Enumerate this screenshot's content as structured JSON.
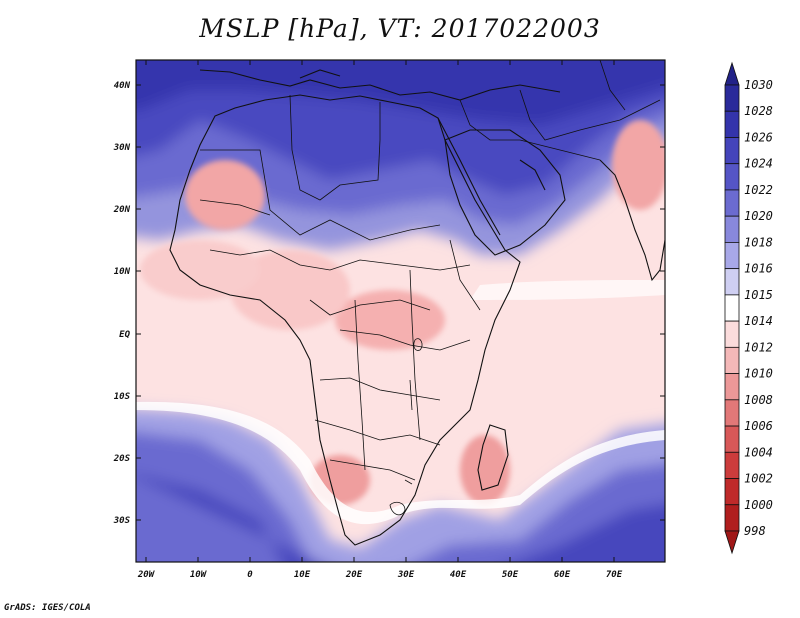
{
  "map": {
    "title": "MSLP [hPa], VT: 2017022003",
    "credit": "GrADS: IGES/COLA",
    "lat_labels": [
      "40N",
      "30N",
      "20N",
      "10N",
      "EQ",
      "10S",
      "20S",
      "30S"
    ],
    "lon_labels": [
      "20W",
      "10W",
      "0",
      "10E",
      "20E",
      "30E",
      "40E",
      "50E",
      "60E",
      "70E"
    ]
  },
  "colorbar": {
    "levels": [
      "1030",
      "1028",
      "1026",
      "1024",
      "1022",
      "1020",
      "1018",
      "1016",
      "1015",
      "1014",
      "1012",
      "1010",
      "1008",
      "1006",
      "1004",
      "1002",
      "1000",
      "998"
    ],
    "colors": [
      "#222288",
      "#2a2a9a",
      "#3434ab",
      "#4444bb",
      "#5555c6",
      "#6b6bd0",
      "#8888dc",
      "#a8a8e8",
      "#cfcff2",
      "#ffffff",
      "#fbdcdc",
      "#f4b8b8",
      "#ec9898",
      "#e27878",
      "#d85858",
      "#cc3c3c",
      "#bf2a2a",
      "#b01e1e",
      "#a01818"
    ]
  }
}
